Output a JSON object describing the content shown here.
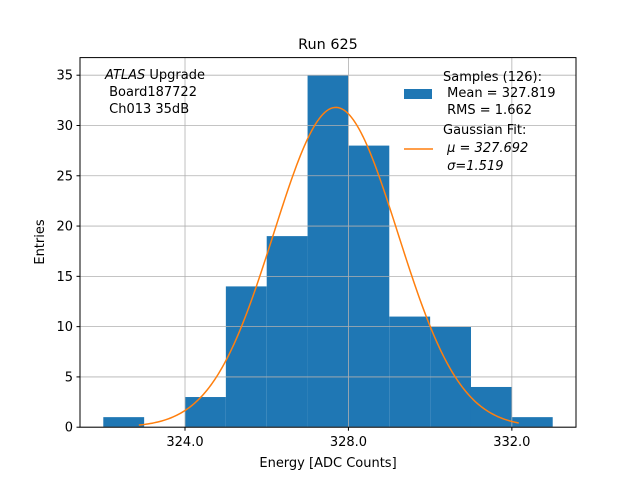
{
  "chart_data": {
    "type": "bar",
    "title": "Run 625",
    "xlabel": "Energy [ADC Counts]",
    "ylabel": "Entries",
    "xlim": [
      321.43,
      333.57
    ],
    "ylim": [
      0,
      36.75
    ],
    "grid": true,
    "bin_edges": [
      322,
      323,
      324,
      325,
      326,
      327,
      328,
      329,
      330,
      331,
      332,
      333
    ],
    "values": [
      1,
      0,
      3,
      14,
      19,
      35,
      28,
      11,
      10,
      4,
      1
    ],
    "xticks": [
      324.0,
      328.0,
      332.0
    ],
    "xtick_labels": [
      "324.0",
      "328.0",
      "332.0"
    ],
    "yticks": [
      0,
      5,
      10,
      15,
      20,
      25,
      30,
      35
    ],
    "ytick_labels": [
      "0",
      "5",
      "10",
      "15",
      "20",
      "25",
      "30",
      "35"
    ],
    "fit": {
      "type": "gaussian",
      "mean": 327.692,
      "sigma": 1.519,
      "amplitude": 31.8,
      "x_range": [
        322.87,
        332.17
      ]
    },
    "colors": {
      "bars": "#1f77b4",
      "fit": "#ff7f0e",
      "grid": "#b0b0b0"
    },
    "annotation": {
      "italic": "ATLAS",
      "line1_rest": " Upgrade",
      "line2": " Board187722",
      "line3": " Ch013 35dB"
    },
    "legend": {
      "placement": "top-right",
      "entries": [
        {
          "lines": [
            "Samples (126):",
            " Mean = 327.819",
            " RMS = 1.662"
          ]
        },
        {
          "lines": [
            "Gaussian Fit:",
            " μ = 327.692",
            " σ=1.519"
          ]
        }
      ]
    }
  }
}
